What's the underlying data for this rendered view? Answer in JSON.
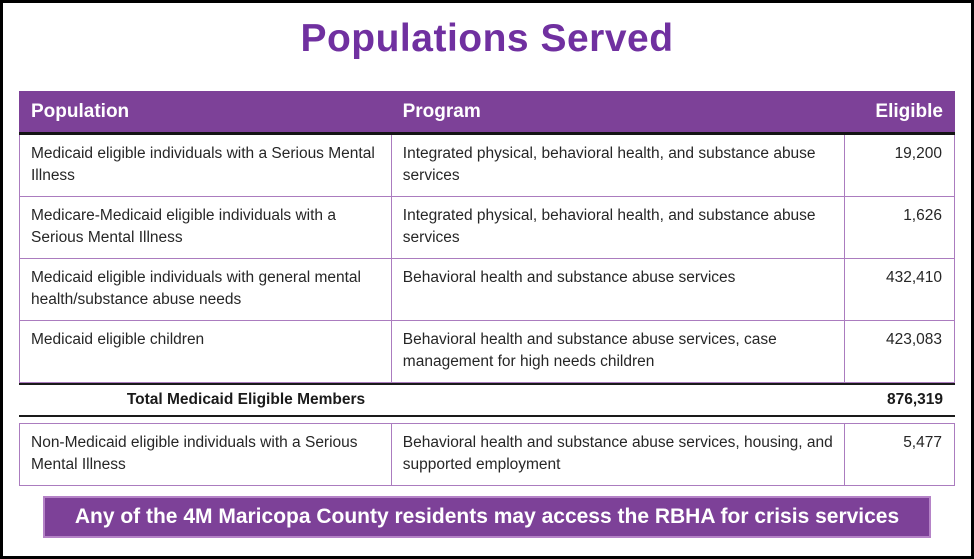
{
  "title": "Populations Served",
  "colors": {
    "title_text": "#7030a0",
    "header_bg": "#7d4198",
    "header_text": "#ffffff",
    "row_border": "#ab7cbf",
    "total_border": "#1a1a1a",
    "banner_bg": "#7d4198",
    "banner_border": "#b583c7",
    "banner_text": "#ffffff",
    "body_text": "#262626",
    "frame_border": "#000000"
  },
  "table": {
    "headers": [
      "Population",
      "Program",
      "Eligible"
    ],
    "rows": [
      {
        "population": "Medicaid eligible individuals with a Serious Mental Illness",
        "program": "Integrated physical, behavioral health, and substance abuse services",
        "eligible": "19,200"
      },
      {
        "population": "Medicare-Medicaid eligible individuals with a Serious Mental Illness",
        "program": "Integrated physical, behavioral health, and substance abuse services",
        "eligible": "1,626"
      },
      {
        "population": "Medicaid eligible individuals with general mental health/substance abuse needs",
        "program": "Behavioral health and substance abuse services",
        "eligible": "432,410"
      },
      {
        "population": "Medicaid eligible children",
        "program": "Behavioral health and substance abuse services, case management for high needs children",
        "eligible": "423,083"
      }
    ],
    "total": {
      "label": "Total Medicaid Eligible Members",
      "value": "876,319"
    },
    "non_medicaid_row": {
      "population": "Non-Medicaid eligible individuals with a Serious Mental Illness",
      "program": "Behavioral health and substance abuse services, housing, and supported employment",
      "eligible": "5,477"
    }
  },
  "banner": "Any of the 4M Maricopa County residents may access the RBHA for crisis services"
}
